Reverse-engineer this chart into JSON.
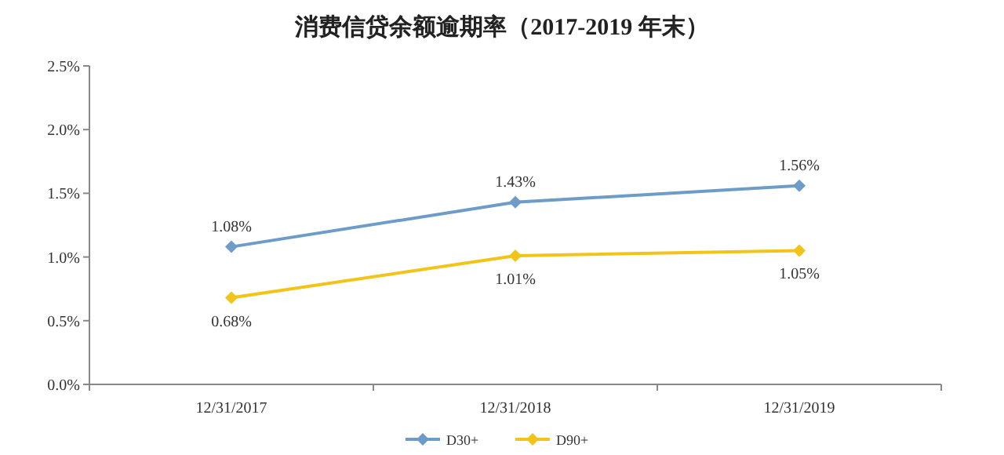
{
  "chart_data": {
    "type": "line",
    "title": "消费信贷余额逾期率（2017-2019 年末）",
    "categories": [
      "12/31/2017",
      "12/31/2018",
      "12/31/2019"
    ],
    "series": [
      {
        "name": "D30+",
        "color": "#6d9cc9",
        "values": [
          1.08,
          1.43,
          1.56
        ],
        "value_labels": [
          "1.08%",
          "1.43%",
          "1.56%"
        ]
      },
      {
        "name": "D90+",
        "color": "#f2c318",
        "values": [
          0.68,
          1.01,
          1.05
        ],
        "value_labels": [
          "0.68%",
          "1.01%",
          "1.05%"
        ]
      }
    ],
    "ylim": [
      0,
      2.5
    ],
    "yticks": [
      {
        "value": 0,
        "label": "0.0%"
      },
      {
        "value": 0.5,
        "label": "0.5%"
      },
      {
        "value": 1,
        "label": "1.0%"
      },
      {
        "value": 1.5,
        "label": "1.5%"
      },
      {
        "value": 2,
        "label": "2.0%"
      },
      {
        "value": 2.5,
        "label": "2.5%"
      }
    ],
    "grid": false,
    "legend": "bottom",
    "marker": "diamond",
    "line_style": "solid"
  }
}
